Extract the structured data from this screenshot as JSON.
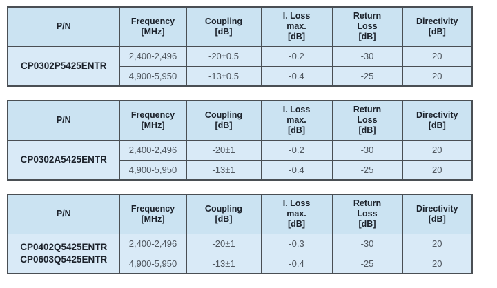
{
  "colors": {
    "header_bg": "#cbe3f2",
    "row_bg": "#d9eaf7",
    "border": "#4a4f54",
    "header_text": "#1c222b",
    "value_text": "#4f565e"
  },
  "columns": [
    {
      "label": "P/N"
    },
    {
      "label": "Frequency\n[MHz]"
    },
    {
      "label": "Coupling\n[dB]"
    },
    {
      "label": "I. Loss\nmax.\n[dB]"
    },
    {
      "label": "Return\nLoss\n[dB]"
    },
    {
      "label": "Directivity\n[dB]"
    }
  ],
  "tables": [
    {
      "pn": "CP0302P5425ENTR",
      "rows": [
        {
          "frequency": "2,400-2,496",
          "coupling": "-20±0.5",
          "i_loss_max": "-0.2",
          "return_loss": "-30",
          "directivity": "20"
        },
        {
          "frequency": "4,900-5,950",
          "coupling": "-13±0.5",
          "i_loss_max": "-0.4",
          "return_loss": "-25",
          "directivity": "20"
        }
      ]
    },
    {
      "pn": "CP0302A5425ENTR",
      "rows": [
        {
          "frequency": "2,400-2,496",
          "coupling": "-20±1",
          "i_loss_max": "-0.2",
          "return_loss": "-30",
          "directivity": "20"
        },
        {
          "frequency": "4,900-5,950",
          "coupling": "-13±1",
          "i_loss_max": "-0.4",
          "return_loss": "-25",
          "directivity": "20"
        }
      ]
    },
    {
      "pn": "CP0402Q5425ENTR\nCP0603Q5425ENTR",
      "rows": [
        {
          "frequency": "2,400-2,496",
          "coupling": "-20±1",
          "i_loss_max": "-0.3",
          "return_loss": "-30",
          "directivity": "20"
        },
        {
          "frequency": "4,900-5,950",
          "coupling": "-13±1",
          "i_loss_max": "-0.4",
          "return_loss": "-25",
          "directivity": "20"
        }
      ]
    }
  ]
}
